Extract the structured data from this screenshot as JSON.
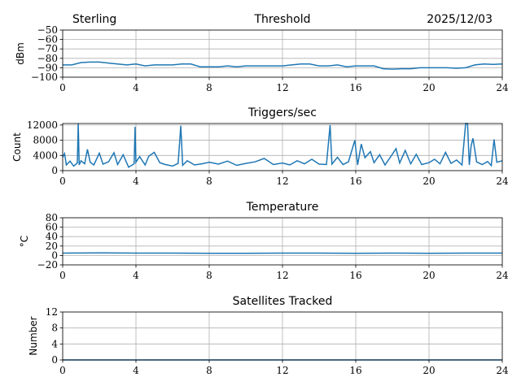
{
  "header": {
    "left": "Sterling",
    "right": "2025/12/03"
  },
  "chart_data": [
    {
      "type": "line",
      "title": "Threshold",
      "ylabel": "dBm",
      "xlim": [
        0,
        24
      ],
      "ylim": [
        -100,
        -50
      ],
      "grid": true,
      "xticks": [
        0,
        4,
        8,
        12,
        16,
        20,
        24
      ],
      "yticks": [
        -100,
        -90,
        -80,
        -70,
        -60,
        -50
      ],
      "ytick_labels": [
        "−100",
        "−90",
        "−80",
        "−70",
        "−60",
        "−50"
      ],
      "color": "#1f77b4",
      "x": [
        0,
        0.5,
        1,
        1.5,
        2,
        2.5,
        3,
        3.5,
        4,
        4.5,
        5,
        5.5,
        6,
        6.5,
        7,
        7.5,
        8,
        8.5,
        9,
        9.5,
        10,
        10.5,
        11,
        11.5,
        12,
        12.5,
        13,
        13.5,
        14,
        14.5,
        15,
        15.5,
        16,
        16.5,
        17,
        17.5,
        18,
        18.5,
        19,
        19.5,
        20,
        20.5,
        21,
        21.5,
        22,
        22.5,
        23,
        23.5,
        24
      ],
      "y": [
        -87,
        -87,
        -84.5,
        -84,
        -84,
        -85,
        -86,
        -87,
        -86,
        -88,
        -87,
        -87,
        -87,
        -86,
        -86,
        -89,
        -89,
        -89,
        -88,
        -89,
        -88,
        -88,
        -88,
        -88,
        -88,
        -87,
        -86,
        -86,
        -88,
        -88,
        -87,
        -89,
        -88,
        -88,
        -88,
        -91,
        -91.5,
        -91,
        -91,
        -90,
        -90,
        -90,
        -90,
        -90.5,
        -90,
        -87,
        -86,
        -86.5,
        -86
      ]
    },
    {
      "type": "line",
      "title": "Triggers/sec",
      "ylabel": "Count",
      "xlim": [
        0,
        24
      ],
      "ylim": [
        0,
        12400
      ],
      "grid": true,
      "xticks": [
        0,
        4,
        8,
        12,
        16,
        20,
        24
      ],
      "yticks": [
        0,
        4000,
        8000,
        12000
      ],
      "ytick_labels": [
        "0",
        "4000",
        "8000",
        "12000"
      ],
      "color": "#1f77b4",
      "x": [
        0,
        0.1,
        0.2,
        0.4,
        0.6,
        0.8,
        0.85,
        0.9,
        1.0,
        1.2,
        1.35,
        1.5,
        1.7,
        2.0,
        2.2,
        2.5,
        2.8,
        3.0,
        3.3,
        3.6,
        3.9,
        3.95,
        4.0,
        4.2,
        4.5,
        4.7,
        5.0,
        5.3,
        5.6,
        6.0,
        6.3,
        6.45,
        6.55,
        6.8,
        7.2,
        7.6,
        8.0,
        8.5,
        9.0,
        9.5,
        10.0,
        10.5,
        11.0,
        11.5,
        12.0,
        12.4,
        12.8,
        13.2,
        13.6,
        14.0,
        14.4,
        14.6,
        14.7,
        15.0,
        15.3,
        15.6,
        15.95,
        16.1,
        16.3,
        16.5,
        16.8,
        17.0,
        17.3,
        17.6,
        17.9,
        18.2,
        18.4,
        18.7,
        19.0,
        19.3,
        19.6,
        20.0,
        20.3,
        20.6,
        20.9,
        21.2,
        21.5,
        21.8,
        22.0,
        22.1,
        22.2,
        22.3,
        22.4,
        22.6,
        22.9,
        23.2,
        23.4,
        23.55,
        23.7,
        24.0
      ],
      "y": [
        3500,
        4500,
        1500,
        2500,
        1200,
        2000,
        12400,
        1500,
        2600,
        1800,
        5600,
        2200,
        1500,
        4600,
        1700,
        2300,
        4700,
        1600,
        4200,
        900,
        1800,
        11500,
        2200,
        3700,
        1500,
        3800,
        4800,
        2100,
        1600,
        1200,
        1900,
        11800,
        1400,
        2600,
        1500,
        1800,
        2200,
        1700,
        2500,
        1400,
        1900,
        2300,
        3200,
        1600,
        2000,
        1500,
        2600,
        1800,
        3000,
        1700,
        1600,
        12000,
        1700,
        3500,
        1600,
        2300,
        8000,
        1500,
        7000,
        3400,
        5000,
        2100,
        4200,
        1500,
        3600,
        5800,
        2000,
        5300,
        1800,
        4300,
        1600,
        2100,
        3000,
        1800,
        4800,
        1900,
        2800,
        1500,
        12400,
        12400,
        1500,
        6600,
        8500,
        2300,
        1600,
        2400,
        1300,
        8200,
        2200,
        2600
      ]
    },
    {
      "type": "line",
      "title": "Temperature",
      "ylabel": "°C",
      "xlim": [
        0,
        24
      ],
      "ylim": [
        -20,
        80
      ],
      "grid": true,
      "xticks": [
        0,
        4,
        8,
        12,
        16,
        20,
        24
      ],
      "yticks": [
        -20,
        0,
        20,
        40,
        60,
        80
      ],
      "ytick_labels": [
        "−20",
        "0",
        "20",
        "40",
        "60",
        "80"
      ],
      "color": "#1f77b4",
      "x": [
        0,
        2,
        4,
        6,
        8,
        10,
        12,
        14,
        16,
        18,
        20,
        22,
        24
      ],
      "y": [
        5,
        5.5,
        5,
        5,
        4.5,
        4.5,
        5,
        5,
        4.5,
        5,
        4.5,
        5,
        5
      ]
    },
    {
      "type": "line",
      "title": "Satellites Tracked",
      "ylabel": "Number",
      "xlim": [
        0,
        24
      ],
      "ylim": [
        0,
        12
      ],
      "grid": true,
      "xticks": [
        0,
        4,
        8,
        12,
        16,
        20,
        24
      ],
      "yticks": [
        0,
        4,
        8,
        12
      ],
      "ytick_labels": [
        "0",
        "4",
        "8",
        "12"
      ],
      "color": "#1f77b4",
      "x": [
        0,
        24
      ],
      "y": [
        0,
        0
      ]
    }
  ]
}
